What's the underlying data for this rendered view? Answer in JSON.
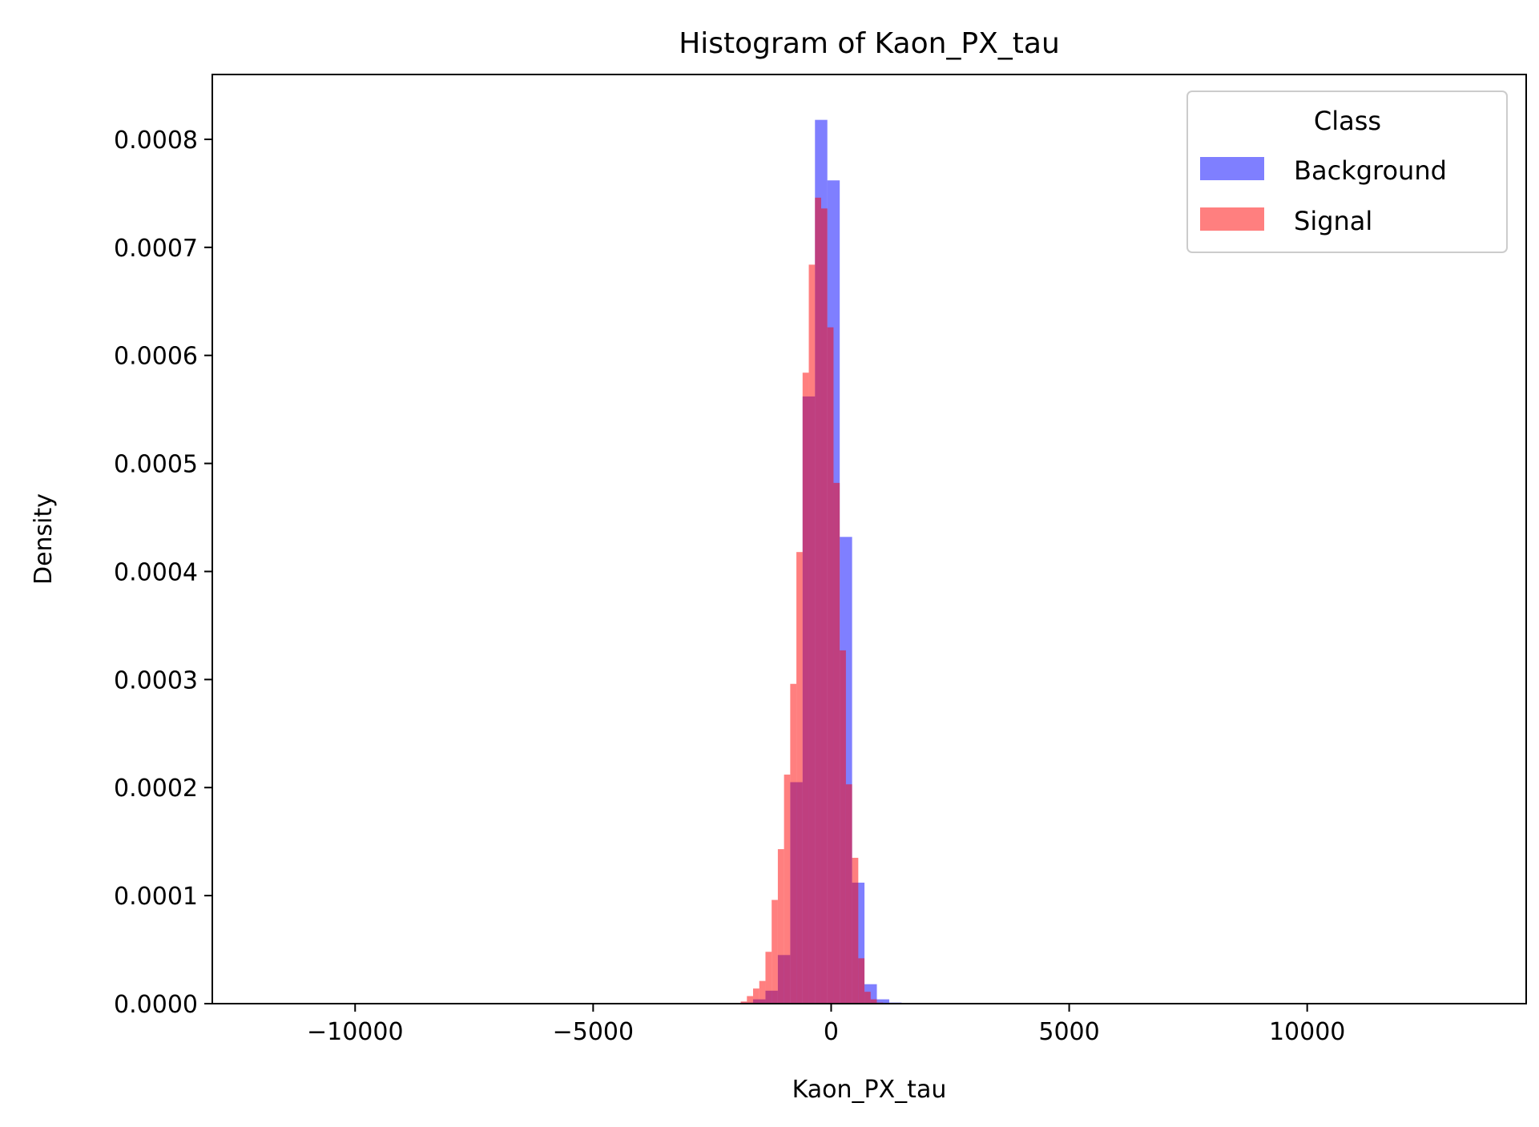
{
  "chart_data": {
    "type": "histogram",
    "title": "Histogram of Kaon_PX_tau",
    "xlabel": "Kaon_PX_tau",
    "ylabel": "Density",
    "xlim": [
      -13000,
      14600
    ],
    "ylim": [
      0,
      0.00086
    ],
    "x_ticks": [
      -10000,
      -5000,
      0,
      5000,
      10000
    ],
    "x_tick_labels": [
      "−10000",
      "−5000",
      "0",
      "5000",
      "10000"
    ],
    "y_ticks": [
      0,
      0.0001,
      0.0002,
      0.0003,
      0.0004,
      0.0005,
      0.0006,
      0.0007,
      0.0008
    ],
    "y_tick_labels": [
      "0.0000",
      "0.0001",
      "0.0002",
      "0.0003",
      "0.0004",
      "0.0005",
      "0.0006",
      "0.0007",
      "0.0008"
    ],
    "grid": false,
    "legend": {
      "title": "Class",
      "placement": "top-right"
    },
    "series": [
      {
        "name": "Background",
        "color": "#0000ff",
        "opacity": 0.5,
        "bin_start": -1900,
        "bin_width": 260,
        "values": [
          1e-06,
          4e-06,
          1.2e-05,
          4.5e-05,
          0.000205,
          0.000562,
          0.000818,
          0.000762,
          0.000432,
          0.000112,
          1.8e-05,
          4e-06,
          1e-06
        ]
      },
      {
        "name": "Signal",
        "color": "#ff0000",
        "opacity": 0.5,
        "bin_start": -1900,
        "bin_width": 130,
        "values": [
          2e-06,
          7e-06,
          1.4e-05,
          2.1e-05,
          4.8e-05,
          9.6e-05,
          0.000143,
          0.000212,
          0.000296,
          0.000418,
          0.000584,
          0.000684,
          0.000746,
          0.000736,
          0.000626,
          0.000482,
          0.000327,
          0.000203,
          0.000135,
          4.2e-05,
          1.1e-05,
          4e-06,
          1e-06
        ]
      }
    ]
  }
}
